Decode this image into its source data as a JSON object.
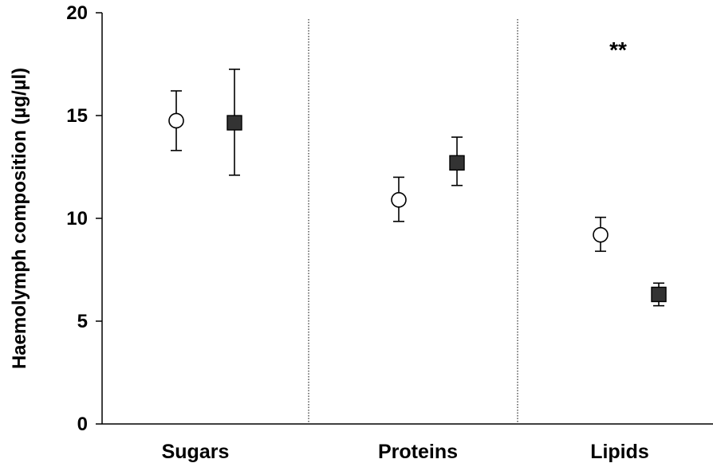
{
  "chart_data": {
    "type": "scatter",
    "ylabel": "Haemolymph composition (µg/µl)",
    "xlabel": "",
    "ylim": [
      0,
      20
    ],
    "yticks": [
      0,
      5,
      10,
      15,
      20
    ],
    "categories": [
      "Sugars",
      "Proteins",
      "Lipids"
    ],
    "grid": false,
    "category_separators": "dotted vertical lines between categories",
    "series": [
      {
        "marker": "open-circle",
        "color": "#ffffff",
        "values": [
          14.75,
          10.9,
          9.2
        ],
        "error_lower": [
          13.3,
          9.85,
          8.4
        ],
        "error_upper": [
          16.2,
          12.0,
          10.05
        ]
      },
      {
        "marker": "filled-square",
        "color": "#333333",
        "values": [
          14.65,
          12.7,
          6.3
        ],
        "error_lower": [
          12.1,
          11.6,
          5.75
        ],
        "error_upper": [
          17.25,
          13.95,
          6.85
        ]
      }
    ],
    "annotations": [
      {
        "text": "**",
        "category": "Lipids"
      }
    ]
  }
}
